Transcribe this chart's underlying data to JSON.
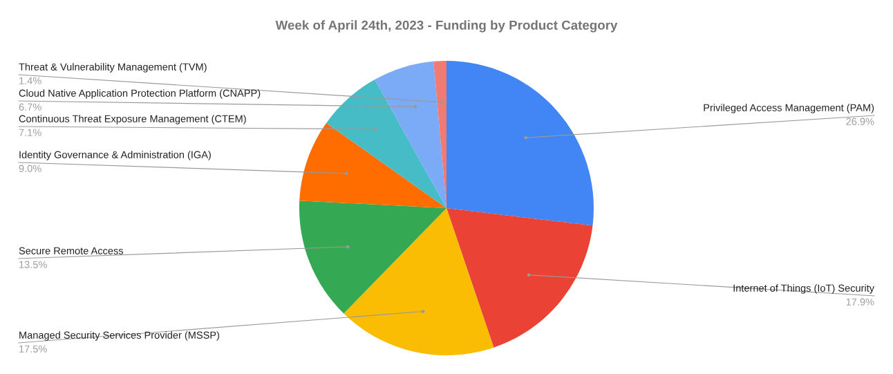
{
  "chart_data": {
    "type": "pie",
    "title": "Week of April 24th, 2023 - Funding by Product Category",
    "categories": [
      "Privileged Access Management (PAM)",
      "Internet of Things (IoT) Security",
      "Managed Security Services Provider (MSSP)",
      "Secure Remote Access",
      "Identity Governance & Administration (IGA)",
      "Continuous Threat Exposure Management (CTEM)",
      "Cloud Native Application Protection Platform (CNAPP)",
      "Threat & Vulnerability Management (TVM)"
    ],
    "values": [
      26.9,
      17.9,
      17.5,
      13.5,
      9.0,
      7.1,
      6.7,
      1.4
    ],
    "value_labels": [
      "26.9%",
      "17.9%",
      "17.5%",
      "13.5%",
      "9.0%",
      "7.1%",
      "6.7%",
      "1.4%"
    ],
    "colors": [
      "#4285f4",
      "#ea4335",
      "#fbbc04",
      "#34a853",
      "#ff6d01",
      "#46bdc6",
      "#7baaf7",
      "#f07b72"
    ],
    "legend": false
  }
}
